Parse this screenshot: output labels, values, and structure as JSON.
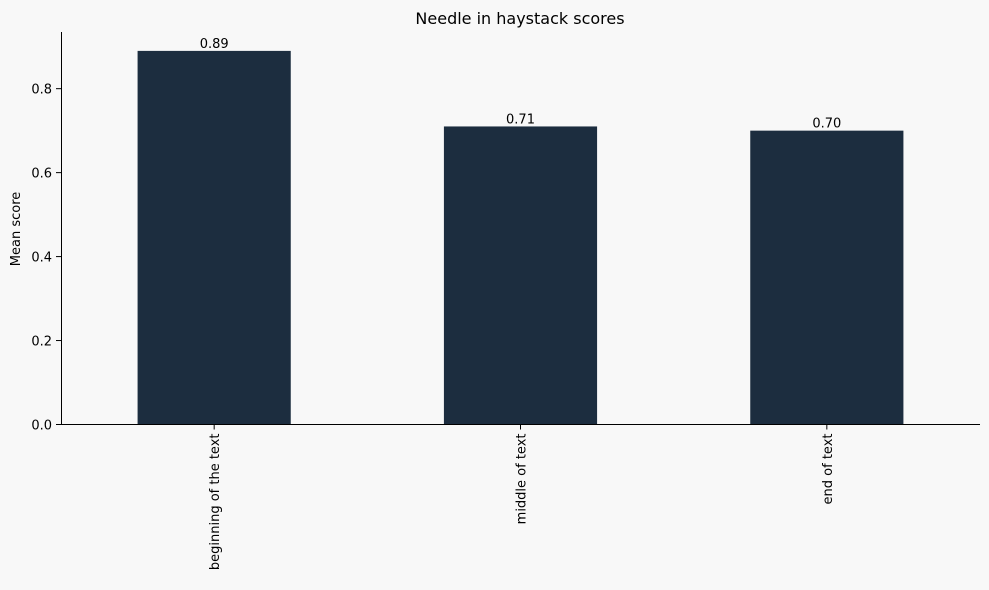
{
  "chart_data": {
    "type": "bar",
    "title": "Needle in haystack scores",
    "xlabel": "",
    "ylabel": "Mean score",
    "categories": [
      "beginning of the text",
      "middle of text",
      "end of text"
    ],
    "values": [
      0.89,
      0.71,
      0.7
    ],
    "data_labels": [
      "0.89",
      "0.71",
      "0.70"
    ],
    "ylim": [
      0,
      0.935
    ],
    "yticks": [
      0.0,
      0.2,
      0.4,
      0.6,
      0.8
    ],
    "ytick_labels": [
      "0.0",
      "0.2",
      "0.4",
      "0.6",
      "0.8"
    ],
    "grid": false,
    "legend": "none",
    "bar_color": "#1c2d3f",
    "background_color": "#f8f8f8"
  }
}
